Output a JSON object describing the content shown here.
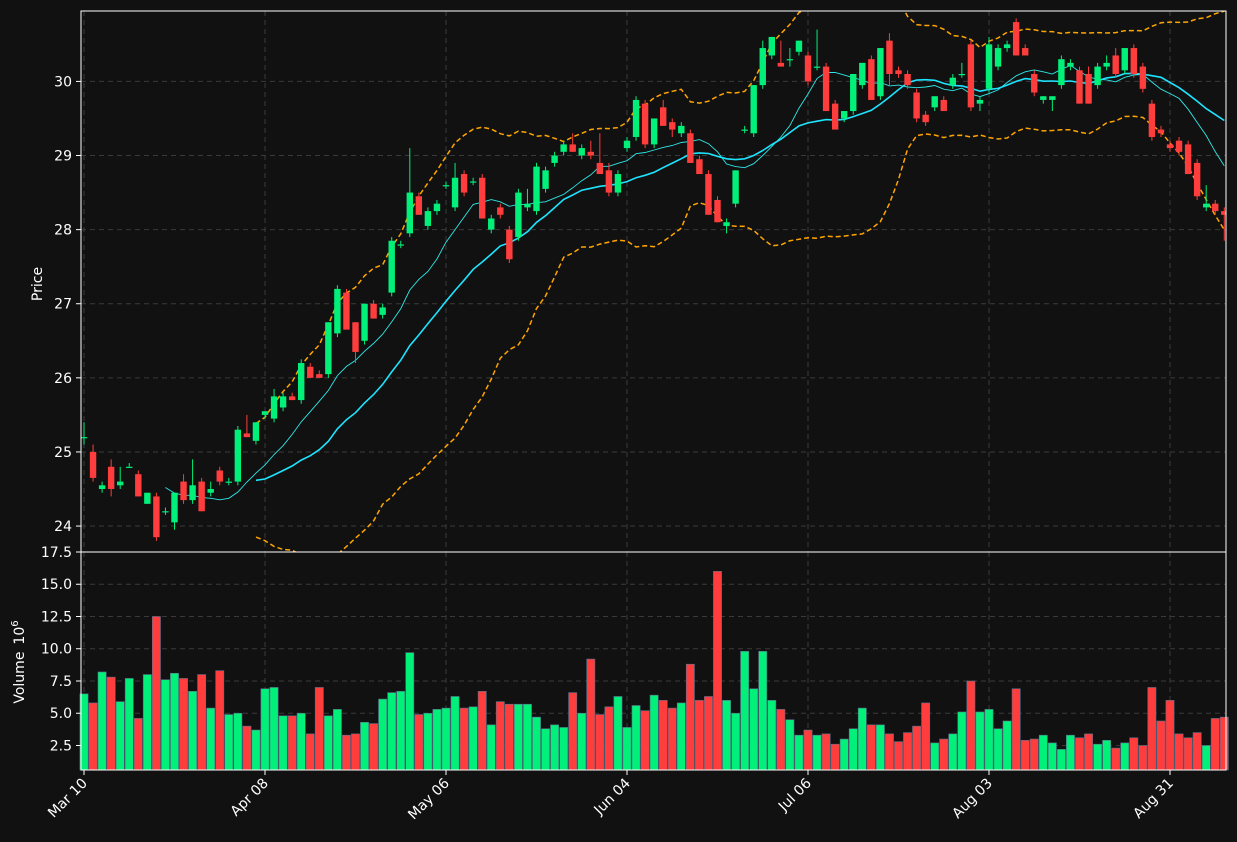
{
  "colors": {
    "background": "#111111",
    "up": "#00f07a",
    "down": "#ff3d3d",
    "bollinger": "#ffa500",
    "sma_fast": "#2ee8e8",
    "sma_slow": "#1ee4ff",
    "grid": "#3a3a3a",
    "frame": "#ffffff"
  },
  "chart_data": {
    "type": "candlestick",
    "price_axis": {
      "label": "Price",
      "ylim": [
        23.65,
        30.95
      ],
      "ticks": [
        24,
        25,
        26,
        27,
        28,
        29,
        30
      ]
    },
    "volume_axis": {
      "label": "Volume",
      "multiplier_base": "10",
      "multiplier_exp": "6",
      "ylim": [
        0.6,
        17.5
      ],
      "ticks": [
        2.5,
        5.0,
        7.5,
        10.0,
        12.5,
        15.0,
        17.5
      ],
      "tick_labels": [
        "2.5",
        "5.0",
        "7.5",
        "10.0",
        "12.5",
        "15.0",
        "17.5"
      ]
    },
    "x_axis": {
      "tick_labels": [
        "Mar 10",
        "Apr 08",
        "May 06",
        "Jun 04",
        "Jul 06",
        "Aug 03",
        "Aug 31"
      ],
      "tick_index": [
        0,
        20,
        40,
        60,
        80,
        100,
        120
      ]
    },
    "grid": true,
    "candles_ohlcv": [
      [
        25.2,
        25.4,
        25.1,
        25.2,
        6.5
      ],
      [
        25.0,
        25.1,
        24.6,
        24.65,
        5.8
      ],
      [
        24.5,
        24.6,
        24.45,
        24.55,
        8.2
      ],
      [
        24.8,
        24.9,
        24.4,
        24.5,
        7.8
      ],
      [
        24.55,
        24.8,
        24.5,
        24.6,
        5.9
      ],
      [
        24.8,
        24.85,
        24.8,
        24.8,
        7.7
      ],
      [
        24.7,
        24.75,
        24.4,
        24.4,
        4.6
      ],
      [
        24.3,
        24.45,
        24.3,
        24.45,
        8.0
      ],
      [
        24.4,
        24.45,
        23.8,
        23.85,
        12.5
      ],
      [
        24.2,
        24.25,
        24.15,
        24.2,
        7.6
      ],
      [
        24.05,
        24.45,
        23.95,
        24.45,
        8.1
      ],
      [
        24.6,
        24.7,
        24.3,
        24.35,
        7.7
      ],
      [
        24.35,
        24.9,
        24.3,
        24.55,
        6.7
      ],
      [
        24.6,
        24.65,
        24.2,
        24.2,
        8.0
      ],
      [
        24.45,
        24.6,
        24.4,
        24.5,
        5.4
      ],
      [
        24.75,
        24.8,
        24.55,
        24.6,
        8.3
      ],
      [
        24.6,
        24.65,
        24.55,
        24.6,
        4.9
      ],
      [
        24.6,
        25.35,
        24.55,
        25.3,
        5.0
      ],
      [
        25.25,
        25.5,
        25.2,
        25.2,
        4.0
      ],
      [
        25.15,
        25.4,
        25.1,
        25.4,
        3.7
      ],
      [
        25.5,
        25.55,
        25.45,
        25.55,
        6.9
      ],
      [
        25.45,
        25.85,
        25.4,
        25.75,
        7.0
      ],
      [
        25.6,
        25.8,
        25.55,
        25.75,
        4.8
      ],
      [
        25.75,
        25.8,
        25.7,
        25.7,
        4.8
      ],
      [
        25.7,
        26.25,
        25.65,
        26.2,
        5.0
      ],
      [
        26.15,
        26.2,
        26.0,
        26.0,
        3.4
      ],
      [
        26.05,
        26.1,
        26.0,
        26.0,
        7.0
      ],
      [
        26.05,
        26.75,
        26.0,
        26.75,
        4.8
      ],
      [
        26.6,
        27.25,
        26.55,
        27.2,
        5.3
      ],
      [
        27.15,
        27.2,
        26.7,
        26.65,
        3.3
      ],
      [
        26.75,
        26.75,
        26.2,
        26.35,
        3.4
      ],
      [
        26.5,
        27.0,
        26.45,
        27.0,
        4.3
      ],
      [
        27.0,
        27.05,
        26.8,
        26.8,
        4.2
      ],
      [
        26.85,
        27.0,
        26.8,
        26.95,
        6.1
      ],
      [
        27.15,
        27.9,
        27.1,
        27.85,
        6.6
      ],
      [
        27.8,
        27.85,
        27.75,
        27.8,
        6.7
      ],
      [
        27.95,
        29.1,
        27.9,
        28.5,
        9.7
      ],
      [
        28.45,
        28.5,
        28.2,
        28.2,
        4.9
      ],
      [
        28.05,
        28.3,
        28.0,
        28.25,
        5.0
      ],
      [
        28.25,
        28.4,
        28.2,
        28.35,
        5.3
      ],
      [
        28.6,
        28.65,
        28.55,
        28.6,
        5.4
      ],
      [
        28.3,
        28.9,
        28.25,
        28.7,
        6.3
      ],
      [
        28.75,
        28.8,
        28.45,
        28.5,
        5.4
      ],
      [
        28.65,
        28.7,
        28.6,
        28.65,
        5.5
      ],
      [
        28.7,
        28.75,
        28.15,
        28.15,
        6.7
      ],
      [
        28.0,
        28.2,
        27.95,
        28.15,
        4.1
      ],
      [
        28.3,
        28.35,
        28.15,
        28.2,
        5.9
      ],
      [
        28.0,
        28.05,
        27.55,
        27.6,
        5.7
      ],
      [
        27.9,
        28.55,
        27.85,
        28.5,
        5.7
      ],
      [
        28.3,
        28.55,
        28.25,
        28.35,
        5.7
      ],
      [
        28.25,
        28.9,
        28.2,
        28.85,
        4.7
      ],
      [
        28.55,
        28.85,
        28.5,
        28.8,
        3.8
      ],
      [
        28.9,
        29.05,
        28.85,
        29.0,
        4.1
      ],
      [
        29.05,
        29.2,
        29.0,
        29.15,
        3.9
      ],
      [
        29.15,
        29.3,
        29.05,
        29.05,
        6.6
      ],
      [
        29.0,
        29.15,
        28.95,
        29.1,
        5.0
      ],
      [
        29.05,
        29.2,
        28.95,
        29.0,
        9.2
      ],
      [
        28.9,
        29.3,
        28.8,
        28.75,
        4.9
      ],
      [
        28.8,
        28.9,
        28.45,
        28.5,
        5.5
      ],
      [
        28.5,
        28.8,
        28.45,
        28.75,
        6.3
      ],
      [
        29.1,
        29.25,
        29.05,
        29.2,
        3.9
      ],
      [
        29.25,
        29.8,
        29.2,
        29.75,
        5.6
      ],
      [
        29.7,
        29.75,
        29.1,
        29.15,
        5.2
      ],
      [
        29.15,
        29.5,
        29.1,
        29.5,
        6.4
      ],
      [
        29.65,
        29.75,
        29.4,
        29.4,
        6.0
      ],
      [
        29.45,
        29.5,
        29.25,
        29.35,
        5.4
      ],
      [
        29.3,
        29.45,
        29.25,
        29.4,
        5.8
      ],
      [
        29.3,
        29.35,
        28.9,
        28.9,
        8.8
      ],
      [
        28.95,
        29.0,
        28.75,
        28.75,
        6.0
      ],
      [
        28.75,
        28.8,
        28.2,
        28.2,
        6.3
      ],
      [
        28.4,
        28.45,
        28.1,
        28.1,
        16.0
      ],
      [
        28.05,
        28.15,
        27.95,
        28.1,
        6.0
      ],
      [
        28.35,
        28.8,
        28.3,
        28.8,
        5.0
      ],
      [
        29.35,
        29.4,
        29.3,
        29.35,
        9.8
      ],
      [
        29.3,
        29.95,
        29.25,
        29.95,
        6.9
      ],
      [
        29.95,
        30.55,
        29.9,
        30.45,
        9.8
      ],
      [
        30.35,
        30.6,
        30.3,
        30.6,
        6.0
      ],
      [
        30.25,
        30.55,
        30.2,
        30.2,
        5.3
      ],
      [
        30.3,
        30.45,
        30.2,
        30.3,
        4.5
      ],
      [
        30.4,
        30.55,
        30.35,
        30.55,
        3.3
      ],
      [
        30.35,
        30.4,
        29.95,
        30.0,
        3.7
      ],
      [
        30.2,
        30.7,
        30.15,
        30.2,
        3.3
      ],
      [
        30.2,
        30.25,
        29.6,
        29.6,
        3.4
      ],
      [
        29.7,
        29.75,
        29.35,
        29.35,
        2.6
      ],
      [
        29.5,
        29.6,
        29.45,
        29.6,
        3.0
      ],
      [
        29.6,
        30.1,
        29.55,
        30.1,
        3.8
      ],
      [
        29.95,
        30.25,
        29.9,
        30.25,
        5.4
      ],
      [
        30.3,
        30.35,
        29.75,
        29.75,
        4.1
      ],
      [
        29.8,
        30.45,
        29.75,
        30.45,
        4.1
      ],
      [
        30.55,
        30.65,
        29.95,
        30.1,
        3.4
      ],
      [
        30.15,
        30.2,
        30.05,
        30.1,
        2.8
      ],
      [
        30.1,
        30.15,
        29.9,
        29.95,
        3.5
      ],
      [
        29.85,
        29.9,
        29.45,
        29.5,
        4.0
      ],
      [
        29.55,
        29.6,
        29.4,
        29.45,
        5.8
      ],
      [
        29.65,
        29.8,
        29.6,
        29.8,
        2.7
      ],
      [
        29.75,
        29.8,
        29.6,
        29.6,
        3.0
      ],
      [
        29.95,
        30.1,
        29.9,
        30.05,
        3.4
      ],
      [
        30.1,
        30.25,
        30.05,
        30.1,
        5.1
      ],
      [
        30.5,
        30.55,
        29.6,
        29.65,
        7.5
      ],
      [
        29.7,
        29.8,
        29.6,
        29.75,
        5.1
      ],
      [
        29.9,
        30.6,
        29.85,
        30.5,
        5.3
      ],
      [
        30.2,
        30.5,
        30.15,
        30.45,
        3.8
      ],
      [
        30.45,
        30.55,
        30.4,
        30.5,
        4.4
      ],
      [
        30.8,
        30.85,
        30.35,
        30.35,
        6.9
      ],
      [
        30.45,
        30.5,
        30.35,
        30.35,
        2.9
      ],
      [
        30.1,
        30.15,
        29.8,
        29.85,
        3.0
      ],
      [
        29.75,
        29.8,
        29.7,
        29.8,
        3.3
      ],
      [
        29.75,
        29.8,
        29.6,
        29.8,
        2.7
      ],
      [
        29.95,
        30.35,
        29.9,
        30.3,
        2.2
      ],
      [
        30.2,
        30.3,
        30.15,
        30.25,
        3.3
      ],
      [
        30.15,
        30.2,
        29.7,
        29.7,
        3.1
      ],
      [
        30.1,
        30.2,
        29.7,
        29.7,
        3.4
      ],
      [
        29.95,
        30.25,
        29.9,
        30.2,
        2.6
      ],
      [
        30.2,
        30.35,
        30.15,
        30.25,
        2.9
      ],
      [
        30.35,
        30.45,
        30.05,
        30.1,
        2.3
      ],
      [
        30.15,
        30.45,
        30.1,
        30.45,
        2.7
      ],
      [
        30.45,
        30.5,
        30.05,
        30.1,
        3.1
      ],
      [
        30.2,
        30.25,
        29.85,
        29.9,
        2.5
      ],
      [
        29.7,
        29.75,
        29.2,
        29.25,
        7.0
      ],
      [
        29.35,
        29.4,
        29.25,
        29.3,
        4.4
      ],
      [
        29.15,
        29.2,
        29.05,
        29.1,
        6.0
      ],
      [
        29.2,
        29.25,
        29.0,
        29.05,
        3.4
      ],
      [
        29.15,
        29.2,
        28.75,
        28.75,
        3.1
      ],
      [
        28.9,
        28.95,
        28.4,
        28.45,
        3.5
      ],
      [
        28.3,
        28.6,
        28.25,
        28.35,
        2.5
      ],
      [
        28.35,
        28.4,
        28.2,
        28.25,
        4.6
      ],
      [
        28.25,
        28.3,
        27.85,
        28.2,
        4.7
      ]
    ]
  }
}
